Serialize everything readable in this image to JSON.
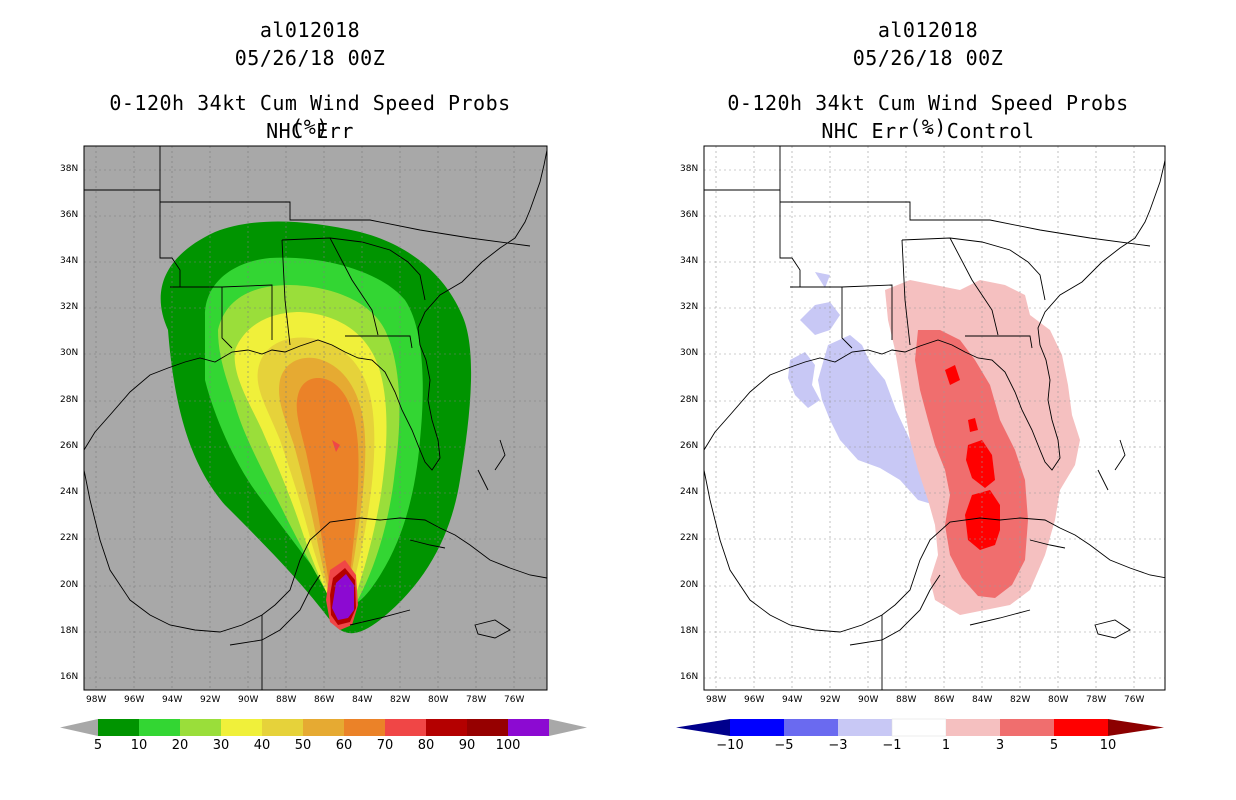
{
  "left": {
    "storm_id": "al012018",
    "datetime": "05/26/18 00Z",
    "product": "0-120h 34kt Cum Wind Speed Probs (%)",
    "subtitle": "NHC Err",
    "colorbar_labels": [
      "5",
      "10",
      "20",
      "30",
      "40",
      "50",
      "60",
      "70",
      "80",
      "90",
      "100"
    ],
    "colorbar_colors": [
      "#009400",
      "#33d633",
      "#9ade3a",
      "#f0f03a",
      "#e6d23a",
      "#e6aa32",
      "#eb8228",
      "#f04646",
      "#b40000",
      "#960000",
      "#8c0ad2"
    ]
  },
  "right": {
    "storm_id": "al012018",
    "datetime": "05/26/18 00Z",
    "product": "0-120h 34kt Cum Wind Speed Probs (%)",
    "subtitle": "NHC Err - Control",
    "colorbar_labels": [
      "−10",
      "−5",
      "−3",
      "−1",
      "1",
      "3",
      "5",
      "10"
    ],
    "colorbar_colors": [
      "#00008c",
      "#0000ff",
      "#6a6af0",
      "#c8c8f5",
      "#ffffff",
      "#f5c0c0",
      "#f06e6e",
      "#ff0000",
      "#8c0000"
    ]
  },
  "lat_labels": [
    "38N",
    "36N",
    "34N",
    "32N",
    "30N",
    "28N",
    "26N",
    "24N",
    "22N",
    "20N",
    "18N",
    "16N"
  ],
  "lon_labels": [
    "98W",
    "96W",
    "94W",
    "92W",
    "90W",
    "88W",
    "86W",
    "84W",
    "82W",
    "80W",
    "78W",
    "76W"
  ],
  "map_colors": {
    "left_background": "#a8a8a8",
    "right_background": "#ffffff",
    "coast": "#000000"
  }
}
